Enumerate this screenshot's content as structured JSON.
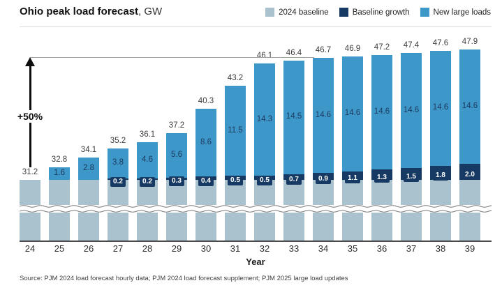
{
  "header": {
    "title": "Ohio peak load forecast",
    "title_suffix": ", GW",
    "legend": [
      {
        "label": "2024 baseline",
        "color": "#a9c2cd"
      },
      {
        "label": "Baseline growth",
        "color": "#163a64"
      },
      {
        "label": "New large loads",
        "color": "#3e97c9"
      }
    ]
  },
  "annotation": {
    "label": "+50%"
  },
  "chart_data": {
    "type": "bar",
    "stacked": true,
    "title": "Ohio peak load forecast, GW",
    "xlabel": "Year",
    "axis_break": true,
    "legend_position": "top-right",
    "categories": [
      "24",
      "25",
      "26",
      "27",
      "28",
      "29",
      "30",
      "31",
      "32",
      "33",
      "34",
      "35",
      "36",
      "37",
      "38",
      "39"
    ],
    "totals": [
      31.2,
      32.8,
      34.1,
      35.2,
      36.1,
      37.2,
      40.3,
      43.2,
      46.1,
      46.4,
      46.7,
      46.9,
      47.2,
      47.4,
      47.6,
      47.9
    ],
    "series": [
      {
        "name": "2024 baseline",
        "color": "#a9c2cd",
        "values": [
          31.2,
          31.2,
          31.3,
          31.2,
          31.3,
          31.3,
          31.3,
          31.2,
          31.3,
          31.2,
          31.2,
          31.2,
          31.3,
          31.3,
          31.2,
          31.3
        ]
      },
      {
        "name": "Baseline growth",
        "color": "#163a64",
        "values": [
          0,
          0,
          0,
          0.2,
          0.2,
          0.3,
          0.4,
          0.5,
          0.5,
          0.7,
          0.9,
          1.1,
          1.3,
          1.5,
          1.8,
          2.0
        ]
      },
      {
        "name": "New large loads",
        "color": "#3e97c9",
        "values": [
          0,
          1.6,
          2.8,
          3.8,
          4.6,
          5.6,
          8.6,
          11.5,
          14.3,
          14.5,
          14.6,
          14.6,
          14.6,
          14.6,
          14.6,
          14.6
        ]
      }
    ],
    "reference_line": {
      "value": 46.8,
      "label": "+50%"
    }
  },
  "footer": {
    "source": "Source: PJM 2024 load forecast hourly data; PJM 2024 load forecast supplement; PJM 2025 large load updates"
  }
}
